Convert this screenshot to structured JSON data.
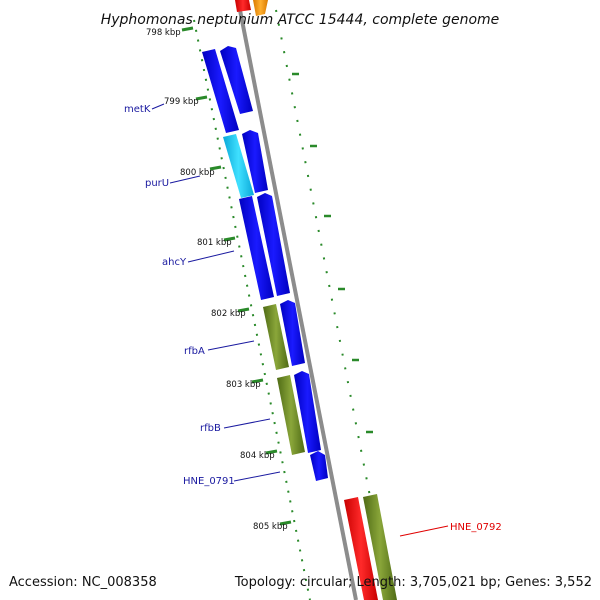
{
  "title": "Hyphomonas neptunium ATCC 15444, complete genome",
  "accession": "Accession: NC_008358",
  "summary": "Topology: circular; Length: 3,705,021 bp; Genes: 3,552",
  "scale_labels": [
    "798 kbp",
    "799 kbp",
    "800 kbp",
    "801 kbp",
    "802 kbp",
    "803 kbp",
    "804 kbp",
    "805 kbp"
  ],
  "genes": [
    {
      "label": "metK",
      "color": "#0000dd"
    },
    {
      "label": "purU",
      "color": "#0000dd"
    },
    {
      "label": "ahcY",
      "color": "#0000dd"
    },
    {
      "label": "rfbA",
      "color": "#0000dd"
    },
    {
      "label": "rfbB",
      "color": "#0000dd"
    },
    {
      "label": "HNE_0791",
      "color": "#0000dd"
    },
    {
      "label": "HNE_0792",
      "color": "#e00000"
    }
  ],
  "colors": {
    "cds_blue": "#0000ee",
    "cds_light_blue": "#22ccee",
    "olive": "#6b8e23",
    "red": "#ff0000",
    "orange": "#ff9900",
    "backbone": "#888888",
    "tick_green": "#2a8a2a"
  }
}
